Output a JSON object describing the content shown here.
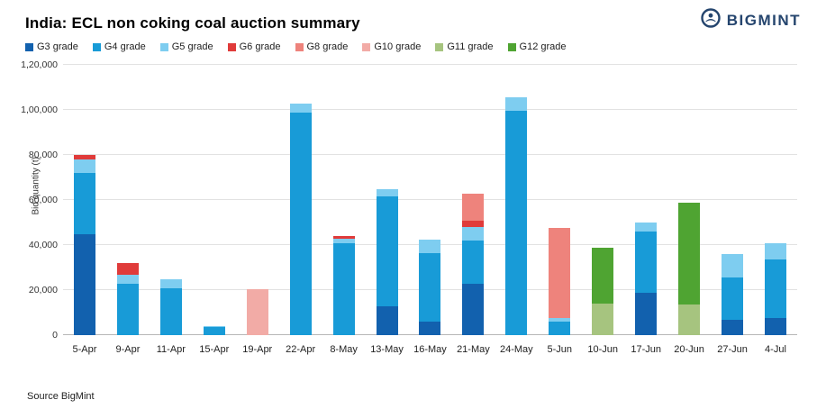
{
  "header": {
    "logo_text": "BIGMINT",
    "logo_color": "#25456e"
  },
  "chart_data": {
    "type": "bar",
    "stacked": true,
    "title": "India: ECL non coking coal auction summary",
    "ylabel": "Bid quantity (t)",
    "source": "Source BigMint",
    "ylim": [
      0,
      120000
    ],
    "grid": true,
    "legend_position": "top",
    "ytick_labels": [
      "0",
      "20,000",
      "40,000",
      "60,000",
      "80,000",
      "1,00,000",
      "1,20,000"
    ],
    "categories": [
      "5-Apr",
      "9-Apr",
      "11-Apr",
      "15-Apr",
      "19-Apr",
      "22-Apr",
      "8-May",
      "13-May",
      "16-May",
      "21-May",
      "24-May",
      "5-Jun",
      "10-Jun",
      "17-Jun",
      "20-Jun",
      "27-Jun",
      "4-Jul"
    ],
    "series": [
      {
        "name": "G3 grade",
        "color": "#1261ae",
        "values": [
          45000,
          0,
          0,
          0,
          0,
          0,
          0,
          13000,
          6000,
          23000,
          0,
          0,
          0,
          19000,
          0,
          7000,
          7500
        ]
      },
      {
        "name": "G4 grade",
        "color": "#189bd7",
        "values": [
          27000,
          23000,
          21000,
          3500,
          0,
          99000,
          41000,
          48500,
          30500,
          19000,
          99500,
          6000,
          0,
          27000,
          0,
          18500,
          26000
        ]
      },
      {
        "name": "G5 grade",
        "color": "#7ecdf0",
        "values": [
          6000,
          4000,
          4000,
          500,
          0,
          4000,
          2000,
          3500,
          6000,
          6000,
          6000,
          1500,
          0,
          4000,
          0,
          10500,
          7500
        ]
      },
      {
        "name": "G6 grade",
        "color": "#e03b3a",
        "values": [
          2000,
          5000,
          0,
          0,
          0,
          0,
          1000,
          0,
          0,
          3000,
          0,
          0,
          0,
          0,
          0,
          0,
          0
        ]
      },
      {
        "name": "G8 grade",
        "color": "#ee837c",
        "values": [
          0,
          0,
          0,
          0,
          0,
          0,
          0,
          0,
          0,
          12000,
          0,
          40000,
          0,
          0,
          0,
          0,
          0
        ]
      },
      {
        "name": "G10 grade",
        "color": "#f2aba6",
        "values": [
          0,
          0,
          0,
          0,
          20500,
          0,
          0,
          0,
          0,
          0,
          0,
          0,
          0,
          0,
          0,
          0,
          0
        ]
      },
      {
        "name": "G11 grade",
        "color": "#a6c47f",
        "values": [
          0,
          0,
          0,
          0,
          0,
          0,
          0,
          0,
          0,
          0,
          0,
          0,
          14000,
          0,
          13500,
          0,
          0
        ]
      },
      {
        "name": "G12 grade",
        "color": "#4fa432",
        "values": [
          0,
          0,
          0,
          0,
          0,
          0,
          0,
          0,
          0,
          0,
          0,
          0,
          25000,
          0,
          45500,
          0,
          0
        ]
      }
    ]
  }
}
